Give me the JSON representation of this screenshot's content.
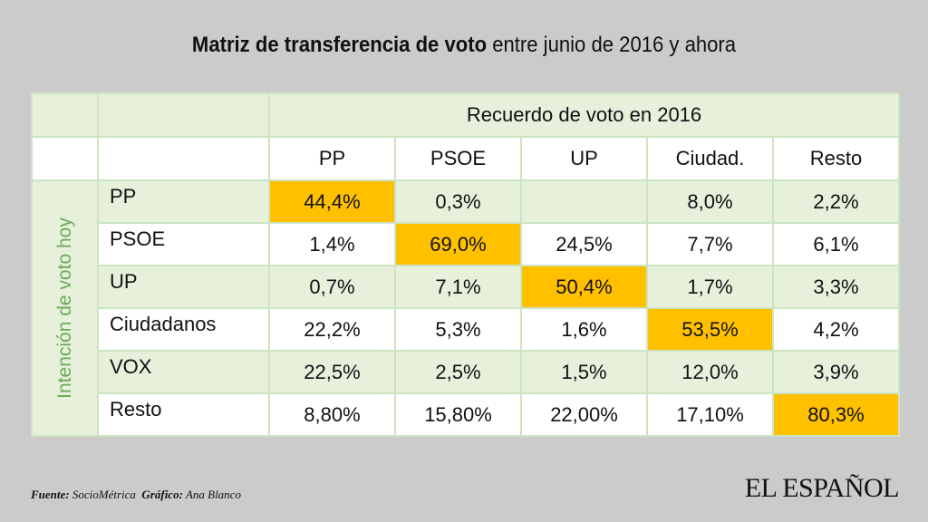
{
  "title": {
    "bold": "Matriz de transferencia de voto",
    "rest": " entre junio de 2016 y ahora"
  },
  "chart_data": {
    "type": "table",
    "column_group_label": "Recuerdo de voto en 2016",
    "row_group_label": "Intención de voto hoy",
    "columns": [
      "PP",
      "PSOE",
      "UP",
      "Ciudad.",
      "Resto"
    ],
    "rows": [
      {
        "label": "PP",
        "values": [
          "44,4%",
          "0,3%",
          "",
          "8,0%",
          "2,2%"
        ]
      },
      {
        "label": "PSOE",
        "values": [
          "1,4%",
          "69,0%",
          "24,5%",
          "7,7%",
          "6,1%"
        ]
      },
      {
        "label": "UP",
        "values": [
          "0,7%",
          "7,1%",
          "50,4%",
          "1,7%",
          "3,3%"
        ]
      },
      {
        "label": "Ciudadanos",
        "values": [
          "22,2%",
          "5,3%",
          "1,6%",
          "53,5%",
          "4,2%"
        ]
      },
      {
        "label": "VOX",
        "values": [
          "22,5%",
          "2,5%",
          "1,5%",
          "12,0%",
          "3,9%"
        ]
      },
      {
        "label": "Resto",
        "values": [
          "8,80%",
          "15,80%",
          "22,00%",
          "17,10%",
          "80,3%"
        ]
      }
    ],
    "highlight_cells": [
      [
        0,
        0
      ],
      [
        1,
        1
      ],
      [
        2,
        2
      ],
      [
        3,
        3
      ],
      [
        5,
        4
      ]
    ]
  },
  "colors": {
    "highlight": "#ffc000",
    "green_fill": "#e6f0db",
    "accent_text": "#6aaa55"
  },
  "footer": {
    "source_label": "Fuente:",
    "source_value": " SocioMétrica",
    "graphic_label": "Gráfico:",
    "graphic_value": " Ana Blanco"
  },
  "logo": "EL ESPAÑOL"
}
